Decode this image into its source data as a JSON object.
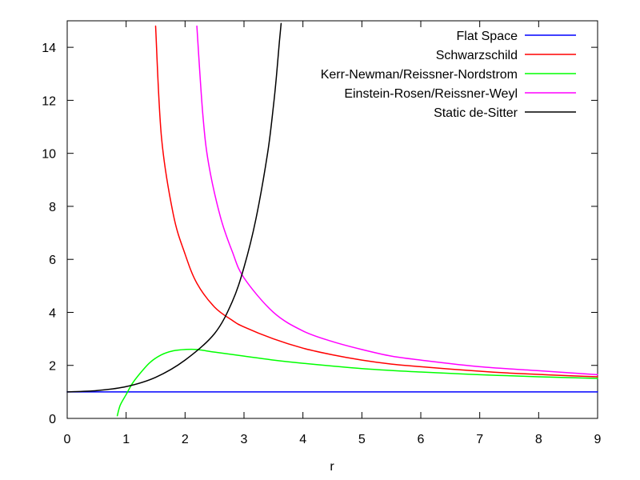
{
  "chart_data": {
    "type": "line",
    "xlabel": "r",
    "ylabel": "",
    "xlim": [
      0,
      9
    ],
    "ylim": [
      0,
      15
    ],
    "xticks": [
      "0",
      "1",
      "2",
      "3",
      "4",
      "5",
      "6",
      "7",
      "8",
      "9"
    ],
    "yticks": [
      "0",
      "2",
      "4",
      "6",
      "8",
      "10",
      "12",
      "14"
    ],
    "grid": false,
    "legend_position": "top-right",
    "series": [
      {
        "name": "Flat Space",
        "color": "#0000ff",
        "x": [
          0,
          9
        ],
        "y": [
          1,
          1
        ]
      },
      {
        "name": "Schwarzschild",
        "color": "#ff0000",
        "x": [
          1.5,
          1.6,
          1.8,
          2.0,
          2.2,
          2.5,
          2.8,
          3.0,
          3.5,
          4.0,
          4.5,
          5.0,
          5.5,
          6.0,
          6.5,
          7.0,
          7.5,
          8.0,
          8.5,
          9.0
        ],
        "y": [
          14.8,
          10.6,
          7.7,
          6.2,
          5.1,
          4.2,
          3.7,
          3.45,
          3.0,
          2.65,
          2.4,
          2.2,
          2.05,
          1.95,
          1.86,
          1.78,
          1.71,
          1.66,
          1.61,
          1.57
        ]
      },
      {
        "name": "Kerr-Newman/Reissner-Nordstrom",
        "color": "#00ff00",
        "x": [
          0.85,
          0.9,
          1.0,
          1.1,
          1.2,
          1.4,
          1.6,
          1.8,
          2.0,
          2.2,
          2.5,
          3.0,
          3.5,
          4.0,
          5.0,
          6.0,
          7.0,
          8.0,
          9.0
        ],
        "y": [
          0.1,
          0.5,
          0.9,
          1.3,
          1.6,
          2.1,
          2.4,
          2.55,
          2.6,
          2.6,
          2.5,
          2.35,
          2.2,
          2.08,
          1.88,
          1.75,
          1.65,
          1.57,
          1.51
        ]
      },
      {
        "name": "Einstein-Rosen/Reissner-Weyl",
        "color": "#ff00ff",
        "x": [
          2.2,
          2.3,
          2.4,
          2.6,
          2.8,
          3.0,
          3.5,
          4.0,
          4.5,
          5.0,
          5.5,
          6.0,
          7.0,
          8.0,
          9.0
        ],
        "y": [
          14.8,
          11.5,
          9.6,
          7.6,
          6.3,
          5.3,
          4.0,
          3.3,
          2.9,
          2.6,
          2.35,
          2.2,
          1.95,
          1.8,
          1.65
        ]
      },
      {
        "name": "Static de-Sitter",
        "color": "#000000",
        "x": [
          0,
          0.5,
          1.0,
          1.5,
          2.0,
          2.5,
          2.8,
          3.0,
          3.2,
          3.4,
          3.5,
          3.55,
          3.6,
          3.63
        ],
        "y": [
          1.0,
          1.05,
          1.2,
          1.55,
          2.2,
          3.2,
          4.4,
          5.7,
          7.5,
          10.0,
          11.8,
          12.9,
          14.2,
          14.9
        ]
      }
    ]
  }
}
